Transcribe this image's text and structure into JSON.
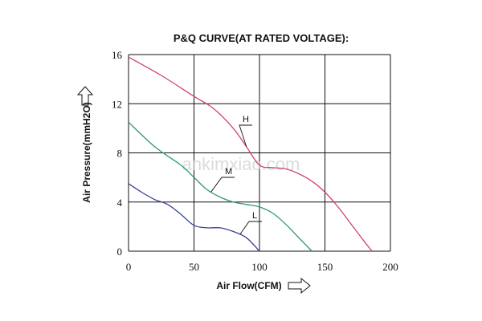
{
  "watermark": "ankimxiao.com",
  "chart_data": {
    "type": "line",
    "title": "P&Q CURVE(AT RATED VOLTAGE):",
    "xlabel": "Air Flow(CFM)",
    "ylabel": "Air Pressure(mmH2O)",
    "xlim": [
      0,
      200
    ],
    "ylim": [
      0,
      16
    ],
    "x_ticks": [
      "0",
      "50",
      "100",
      "150",
      "200"
    ],
    "y_ticks": [
      "0",
      "4",
      "8",
      "12",
      "16"
    ],
    "grid": true,
    "series": [
      {
        "name": "H",
        "color": "#d0407a",
        "x": [
          0,
          25,
          50,
          65,
          80,
          90,
          100,
          110,
          120,
          130,
          140,
          150,
          160,
          170,
          180,
          186
        ],
        "y": [
          15.8,
          14.3,
          12.6,
          11.6,
          10.0,
          8.5,
          7.0,
          6.8,
          6.7,
          6.3,
          5.7,
          4.8,
          3.6,
          2.2,
          0.8,
          0
        ]
      },
      {
        "name": "M",
        "color": "#2e9a6e",
        "x": [
          0,
          20,
          40,
          50,
          60,
          70,
          80,
          90,
          100,
          110,
          120,
          130,
          140
        ],
        "y": [
          10.5,
          8.5,
          7.0,
          6.0,
          5.0,
          4.4,
          4.0,
          3.8,
          3.6,
          3.1,
          2.2,
          1.1,
          0
        ]
      },
      {
        "name": "L",
        "color": "#3a3f9a",
        "x": [
          0,
          10,
          20,
          30,
          40,
          50,
          60,
          70,
          80,
          90,
          100
        ],
        "y": [
          5.5,
          4.8,
          4.2,
          3.8,
          3.0,
          2.1,
          1.9,
          1.9,
          1.6,
          1.1,
          0
        ]
      }
    ]
  }
}
